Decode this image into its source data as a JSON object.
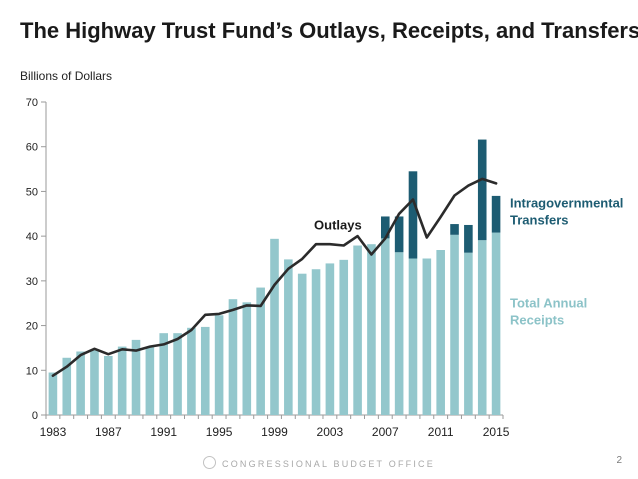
{
  "chart_data": {
    "type": "bar",
    "title": "The Highway Trust Fund’s Outlays, Receipts, and Transfers",
    "ylabel": "Billions of Dollars",
    "xlabel": "",
    "ylim": [
      0,
      70
    ],
    "yticks": [
      0,
      10,
      20,
      30,
      40,
      50,
      60,
      70
    ],
    "xtick_labels": [
      "1983",
      "1987",
      "1991",
      "1995",
      "1999",
      "2003",
      "2007",
      "2011",
      "2015"
    ],
    "years": [
      1983,
      1984,
      1985,
      1986,
      1987,
      1988,
      1989,
      1990,
      1991,
      1992,
      1993,
      1994,
      1995,
      1996,
      1997,
      1998,
      1999,
      2000,
      2001,
      2002,
      2003,
      2004,
      2005,
      2006,
      2007,
      2008,
      2009,
      2010,
      2011,
      2012,
      2013,
      2014,
      2015
    ],
    "series": [
      {
        "name": "Total Annual Receipts",
        "kind": "bar",
        "color": "#93c7cc",
        "values": [
          9.5,
          12.8,
          14.2,
          14.6,
          13.2,
          15.3,
          16.8,
          15.3,
          18.3,
          18.3,
          19.5,
          19.7,
          22.3,
          25.9,
          25.2,
          28.5,
          39.4,
          34.8,
          31.6,
          32.6,
          33.9,
          34.7,
          37.9,
          38.2,
          39.5,
          36.4,
          35.0,
          35.0,
          36.9,
          40.3,
          36.3,
          39.1,
          40.8
        ]
      },
      {
        "name": "Intragovernmental Transfers",
        "kind": "stacked-bar",
        "color": "#1d5c72",
        "values": [
          0,
          0,
          0,
          0,
          0,
          0,
          0,
          0,
          0,
          0,
          0,
          0,
          0,
          0,
          0,
          0,
          0,
          0,
          0,
          0,
          0,
          0,
          0,
          0,
          4.9,
          8.0,
          19.5,
          0,
          0,
          2.4,
          6.2,
          22.5,
          8.2
        ]
      },
      {
        "name": "Outlays",
        "kind": "line",
        "color": "#2b2b2b",
        "values": [
          8.8,
          10.8,
          13.4,
          14.8,
          13.6,
          14.7,
          14.4,
          15.3,
          15.8,
          17.0,
          19.0,
          22.4,
          22.6,
          23.5,
          24.5,
          24.4,
          29.1,
          32.7,
          34.9,
          38.2,
          38.2,
          37.9,
          40.0,
          35.9,
          39.5,
          45.0,
          48.2,
          39.7,
          44.3,
          49.1,
          51.3,
          52.8,
          51.8
        ]
      }
    ],
    "annotations": {
      "outlays": "Outlays",
      "transfers_line1": "Intragovernmental",
      "transfers_line2": "Transfers",
      "receipts_line1": "Total Annual",
      "receipts_line2": "Receipts"
    },
    "annotation_colors": {
      "outlays": "#1a1a1a",
      "transfers": "#1d5c72",
      "receipts": "#8cc3c8"
    },
    "axis_color": "#9a9a9a",
    "tick_text_color": "#222222",
    "grid": false,
    "legend": "none (inline labels on right)"
  },
  "footer": {
    "agency": "CONGRESSIONAL BUDGET OFFICE",
    "page_number": "2"
  }
}
